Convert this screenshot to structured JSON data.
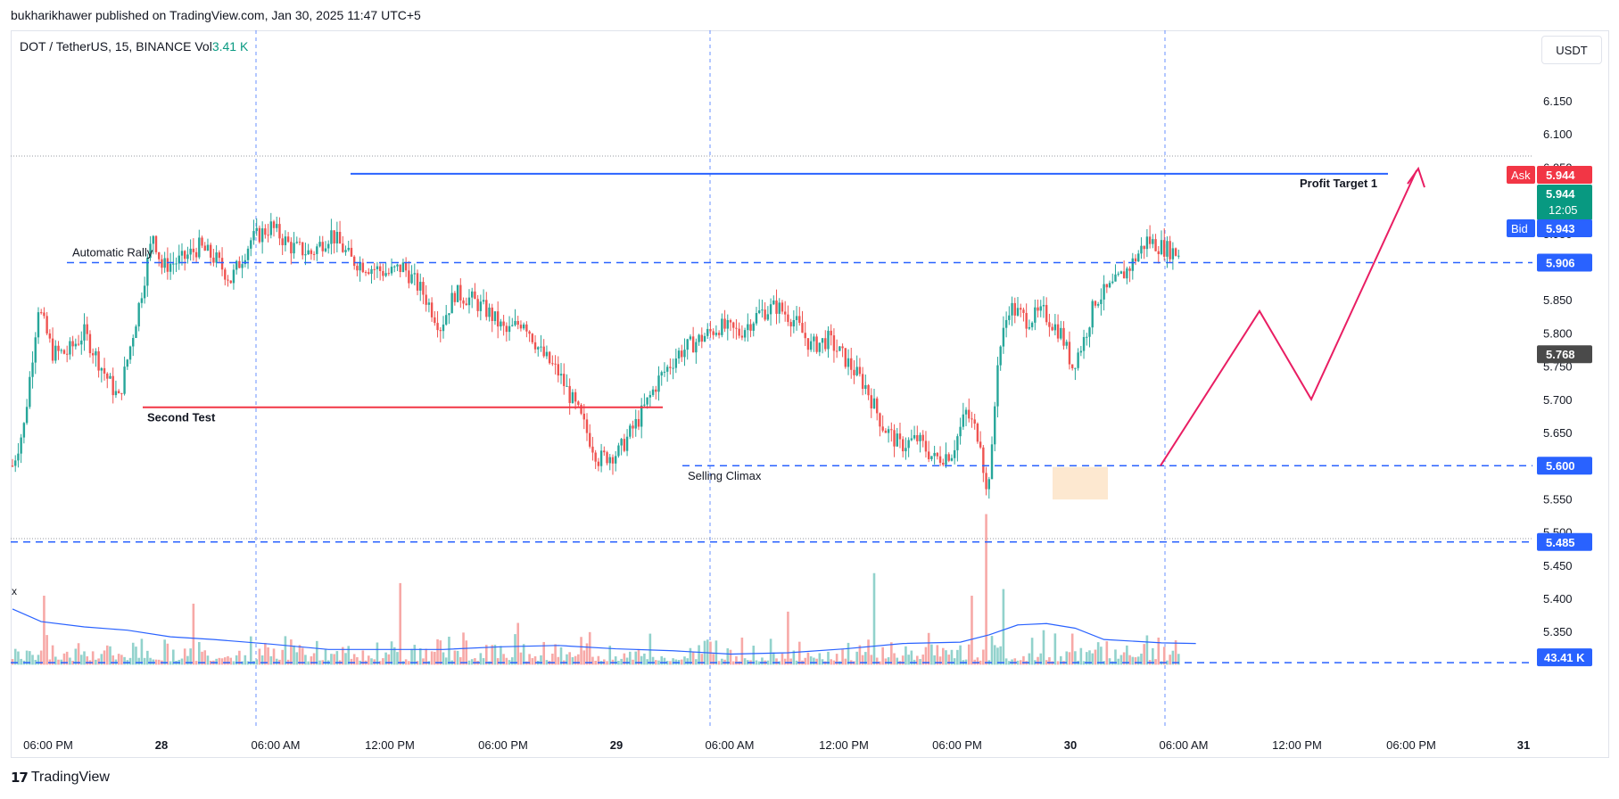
{
  "header": {
    "published_line": "bukharikhawer published on TradingView.com, Jan 30, 2025 11:47 UTC+5"
  },
  "legend": {
    "symbol_line": "DOT / TetherUS, 15, BINANCE",
    "vol_label": "Vol",
    "vol_value": "3.41 K"
  },
  "currency_button": "USDT",
  "close_icon_glyph": "x",
  "footer": {
    "logo_icon": "tradingview-logo-icon",
    "brand": "TradingView"
  },
  "colors": {
    "up": "#26a69a",
    "down": "#ef5350",
    "vol_up": "#92d2cc",
    "vol_down": "#f7a9a7",
    "vol_ma": "#2962ff",
    "dashed_level": "#2962ff",
    "profit_line": "#2962ff",
    "second_test_line": "#f23645",
    "projection": "#e91e63",
    "accumulation_box": "#fde2c4",
    "ask": "#f23645",
    "bid": "#2962ff",
    "last": "#089981",
    "crosshair_label": "#4a4a4a"
  },
  "chart_data": {
    "type": "candlestick",
    "symbol": "DOT / TetherUS",
    "interval": "15",
    "exchange": "BINANCE",
    "ylim": [
      5.3,
      6.15
    ],
    "price_ticks": [
      "6.150",
      "6.100",
      "6.050",
      "6.000",
      "5.950",
      "5.900",
      "5.850",
      "5.800",
      "5.750",
      "5.700",
      "5.650",
      "5.600",
      "5.550",
      "5.500",
      "5.450",
      "5.400",
      "5.350"
    ],
    "time_ticks": [
      "06:00 PM",
      "28",
      "06:00 AM",
      "12:00 PM",
      "06:00 PM",
      "29",
      "06:00 AM",
      "12:00 PM",
      "06:00 PM",
      "30",
      "06:00 AM",
      "12:00 PM",
      "06:00 PM",
      "31"
    ],
    "price_path": [
      [
        0,
        5.6
      ],
      [
        4,
        5.66
      ],
      [
        9,
        5.84
      ],
      [
        14,
        5.77
      ],
      [
        19,
        5.77
      ],
      [
        25,
        5.8
      ],
      [
        32,
        5.74
      ],
      [
        37,
        5.7
      ],
      [
        43,
        5.82
      ],
      [
        49,
        5.95
      ],
      [
        52,
        5.9
      ],
      [
        59,
        5.91
      ],
      [
        65,
        5.93
      ],
      [
        71,
        5.91
      ],
      [
        76,
        5.88
      ],
      [
        83,
        5.94
      ],
      [
        90,
        5.96
      ],
      [
        97,
        5.93
      ],
      [
        104,
        5.92
      ],
      [
        111,
        5.95
      ],
      [
        118,
        5.91
      ],
      [
        124,
        5.9
      ],
      [
        131,
        5.89
      ],
      [
        136,
        5.9
      ],
      [
        143,
        5.86
      ],
      [
        149,
        5.81
      ],
      [
        154,
        5.86
      ],
      [
        160,
        5.85
      ],
      [
        166,
        5.83
      ],
      [
        172,
        5.8
      ],
      [
        178,
        5.82
      ],
      [
        184,
        5.77
      ],
      [
        190,
        5.74
      ],
      [
        197,
        5.68
      ],
      [
        204,
        5.61
      ],
      [
        211,
        5.62
      ],
      [
        218,
        5.67
      ],
      [
        225,
        5.73
      ],
      [
        232,
        5.77
      ],
      [
        239,
        5.79
      ],
      [
        246,
        5.81
      ],
      [
        253,
        5.8
      ],
      [
        260,
        5.83
      ],
      [
        266,
        5.84
      ],
      [
        272,
        5.82
      ],
      [
        278,
        5.78
      ],
      [
        284,
        5.79
      ],
      [
        290,
        5.76
      ],
      [
        297,
        5.72
      ],
      [
        303,
        5.66
      ],
      [
        309,
        5.63
      ],
      [
        315,
        5.64
      ],
      [
        321,
        5.61
      ],
      [
        327,
        5.62
      ],
      [
        332,
        5.68
      ],
      [
        337,
        5.64
      ],
      [
        339,
        5.56
      ],
      [
        341,
        5.62
      ],
      [
        343,
        5.76
      ],
      [
        347,
        5.84
      ],
      [
        353,
        5.82
      ],
      [
        359,
        5.83
      ],
      [
        365,
        5.8
      ],
      [
        369,
        5.75
      ],
      [
        373,
        5.79
      ],
      [
        377,
        5.85
      ],
      [
        383,
        5.87
      ],
      [
        389,
        5.9
      ],
      [
        395,
        5.94
      ],
      [
        400,
        5.93
      ],
      [
        406,
        5.92
      ]
    ],
    "volume_ma": [
      [
        0,
        5.384
      ],
      [
        10,
        5.365
      ],
      [
        25,
        5.357
      ],
      [
        40,
        5.352
      ],
      [
        55,
        5.342
      ],
      [
        70,
        5.338
      ],
      [
        90,
        5.331
      ],
      [
        110,
        5.323
      ],
      [
        130,
        5.323
      ],
      [
        150,
        5.323
      ],
      [
        170,
        5.327
      ],
      [
        190,
        5.329
      ],
      [
        210,
        5.324
      ],
      [
        230,
        5.321
      ],
      [
        250,
        5.316
      ],
      [
        270,
        5.318
      ],
      [
        290,
        5.324
      ],
      [
        310,
        5.332
      ],
      [
        330,
        5.334
      ],
      [
        340,
        5.345
      ],
      [
        350,
        5.36
      ],
      [
        360,
        5.362
      ],
      [
        370,
        5.355
      ],
      [
        380,
        5.338
      ],
      [
        400,
        5.333
      ],
      [
        412,
        5.332
      ]
    ],
    "volume_spikes": [
      [
        339,
        5.527
      ],
      [
        334,
        5.404
      ],
      [
        300,
        5.438
      ],
      [
        135,
        5.423
      ],
      [
        63,
        5.392
      ],
      [
        11,
        5.404
      ],
      [
        345,
        5.414
      ],
      [
        176,
        5.363
      ],
      [
        270,
        5.38
      ]
    ],
    "levels": [
      {
        "name": "automatic-rally",
        "price": 5.906,
        "style": "dashed"
      },
      {
        "name": "selling-climax",
        "price": 5.6,
        "style": "dashed"
      },
      {
        "name": "lower-support",
        "price": 5.485,
        "style": "dashed"
      },
      {
        "name": "volume-axis",
        "price": 5.303,
        "style": "dashed"
      },
      {
        "name": "profit-target",
        "price": 6.04,
        "style": "solid"
      },
      {
        "name": "second-test",
        "price": 5.688,
        "style": "solid"
      }
    ],
    "annotations": {
      "automatic_rally": "Automatic Rally",
      "second_test": "Second Test",
      "selling_climax": "Selling Climax",
      "profit_target": "Profit Target 1"
    },
    "projection_path": [
      [
        5.6,
        0
      ],
      [
        5.833,
        1
      ],
      [
        5.7,
        2
      ],
      [
        6.045,
        3
      ]
    ],
    "price_labels": {
      "ask_tag": "Ask",
      "ask": "5.944",
      "last": "5.944",
      "countdown": "12:05",
      "bid_tag": "Bid",
      "bid": "5.943",
      "rally": "5.906",
      "crosshair": "5.768",
      "climax": "5.600",
      "support": "5.485",
      "volume_ma": "43.41 K"
    }
  }
}
